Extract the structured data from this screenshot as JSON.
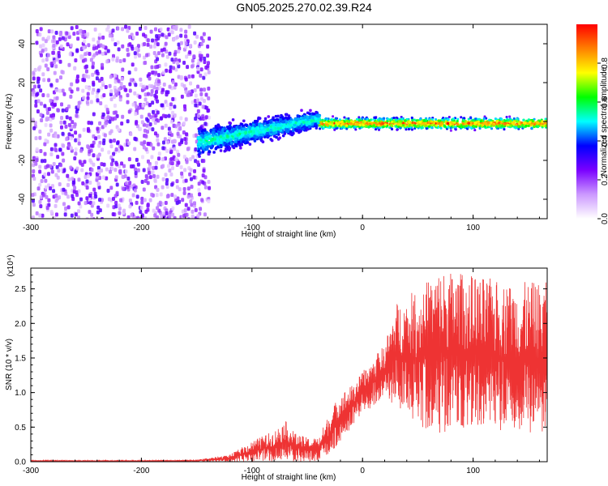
{
  "title": "GN05.2025.270.02.39.R24",
  "chart_data": [
    {
      "type": "heatmap",
      "xlabel": "Height of straight line (km)",
      "ylabel": "Frequency (Hz)",
      "xlim": [
        -300,
        167
      ],
      "ylim": [
        -50,
        50
      ],
      "xticks": [
        -300,
        -200,
        -100,
        0,
        100
      ],
      "yticks": [
        -40,
        -20,
        0,
        20,
        40
      ],
      "colorbar": {
        "label": "Normalized spectral amplitude",
        "range": [
          0,
          1
        ],
        "ticks": [
          0.0,
          0.2,
          0.4,
          0.6,
          0.8
        ],
        "colormap": [
          "#ffffff",
          "#cc99ff",
          "#7a00ff",
          "#0000ff",
          "#00ffff",
          "#00ff00",
          "#ffff00",
          "#ff8000",
          "#ff0000"
        ]
      },
      "regions": [
        {
          "x_range": [
            -300,
            -150
          ],
          "freq_range": [
            -50,
            50
          ],
          "amplitude": [
            0.05,
            0.3
          ],
          "description_key": "noise"
        },
        {
          "x_range": [
            -150,
            -40
          ],
          "freq_center": [
            -10,
            2
          ],
          "freq_spread": 10,
          "amplitude": [
            0.2,
            0.5
          ]
        },
        {
          "x_range": [
            -40,
            167
          ],
          "freq_center": -1,
          "freq_spread": 4,
          "amplitude": [
            0.4,
            1.0
          ]
        }
      ]
    },
    {
      "type": "line",
      "xlabel": "Height of straight line (km)",
      "ylabel": "SNR (10 * v/v)",
      "y_multiplier": "(x10⁴)",
      "xlim": [
        -300,
        167
      ],
      "ylim": [
        0,
        2.8
      ],
      "xticks": [
        -300,
        -200,
        -100,
        0,
        100
      ],
      "yticks": [
        0.0,
        0.5,
        1.0,
        1.5,
        2.0,
        2.5
      ],
      "series": [
        {
          "color": "#ee3333",
          "envelope": [
            {
              "x": -300,
              "min": 0.0,
              "max": 0.02
            },
            {
              "x": -200,
              "min": 0.0,
              "max": 0.02
            },
            {
              "x": -150,
              "min": 0.0,
              "max": 0.03
            },
            {
              "x": -120,
              "min": 0.0,
              "max": 0.1
            },
            {
              "x": -100,
              "min": 0.0,
              "max": 0.3
            },
            {
              "x": -80,
              "min": 0.0,
              "max": 0.45
            },
            {
              "x": -70,
              "min": 0.0,
              "max": 0.6
            },
            {
              "x": -60,
              "min": 0.0,
              "max": 0.4
            },
            {
              "x": -50,
              "min": 0.0,
              "max": 0.35
            },
            {
              "x": -40,
              "min": 0.0,
              "max": 0.35
            },
            {
              "x": -30,
              "min": 0.1,
              "max": 0.7
            },
            {
              "x": -20,
              "min": 0.3,
              "max": 1.0
            },
            {
              "x": -10,
              "min": 0.5,
              "max": 1.1
            },
            {
              "x": 0,
              "min": 0.7,
              "max": 1.3
            },
            {
              "x": 10,
              "min": 0.8,
              "max": 1.5
            },
            {
              "x": 20,
              "min": 0.9,
              "max": 1.7
            },
            {
              "x": 30,
              "min": 0.8,
              "max": 2.3
            },
            {
              "x": 50,
              "min": 0.5,
              "max": 2.5
            },
            {
              "x": 70,
              "min": 0.4,
              "max": 2.8
            },
            {
              "x": 100,
              "min": 0.4,
              "max": 2.7
            },
            {
              "x": 130,
              "min": 0.4,
              "max": 2.6
            },
            {
              "x": 167,
              "min": 0.4,
              "max": 2.6
            }
          ]
        }
      ]
    }
  ]
}
